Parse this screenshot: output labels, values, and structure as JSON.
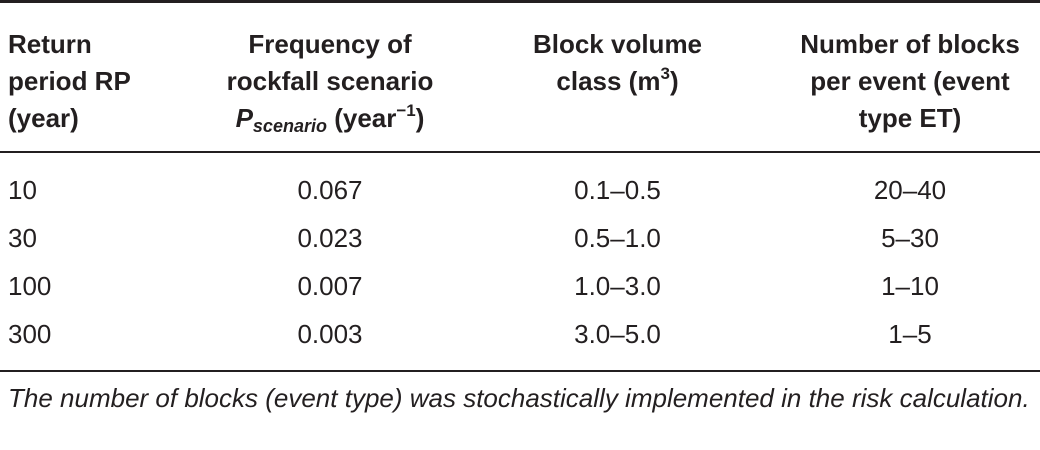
{
  "table": {
    "headers": {
      "col1": [
        "Return",
        "period RP",
        "(year)"
      ],
      "col2": {
        "line1": "Frequency of",
        "line2": "rockfall scenario",
        "symbol": "P",
        "symbol_sub": "scenario",
        "unit_pre": "(year",
        "unit_sup": "−1",
        "unit_post": ")"
      },
      "col3": {
        "line1": "Block volume",
        "line2_pre": "class (m",
        "line2_sup": "3",
        "line2_post": ")"
      },
      "col4": [
        "Number of blocks",
        "per event (event",
        "type ET)"
      ]
    },
    "rows": [
      {
        "return_period": "10",
        "frequency": "0.067",
        "volume_class": "0.1–0.5",
        "blocks": "20–40"
      },
      {
        "return_period": "30",
        "frequency": "0.023",
        "volume_class": "0.5–1.0",
        "blocks": "5–30"
      },
      {
        "return_period": "100",
        "frequency": "0.007",
        "volume_class": "1.0–3.0",
        "blocks": "1–10"
      },
      {
        "return_period": "300",
        "frequency": "0.003",
        "volume_class": "3.0–5.0",
        "blocks": "1–5"
      }
    ]
  },
  "footnote": "The number of blocks (event type) was stochastically implemented in the risk calculation."
}
